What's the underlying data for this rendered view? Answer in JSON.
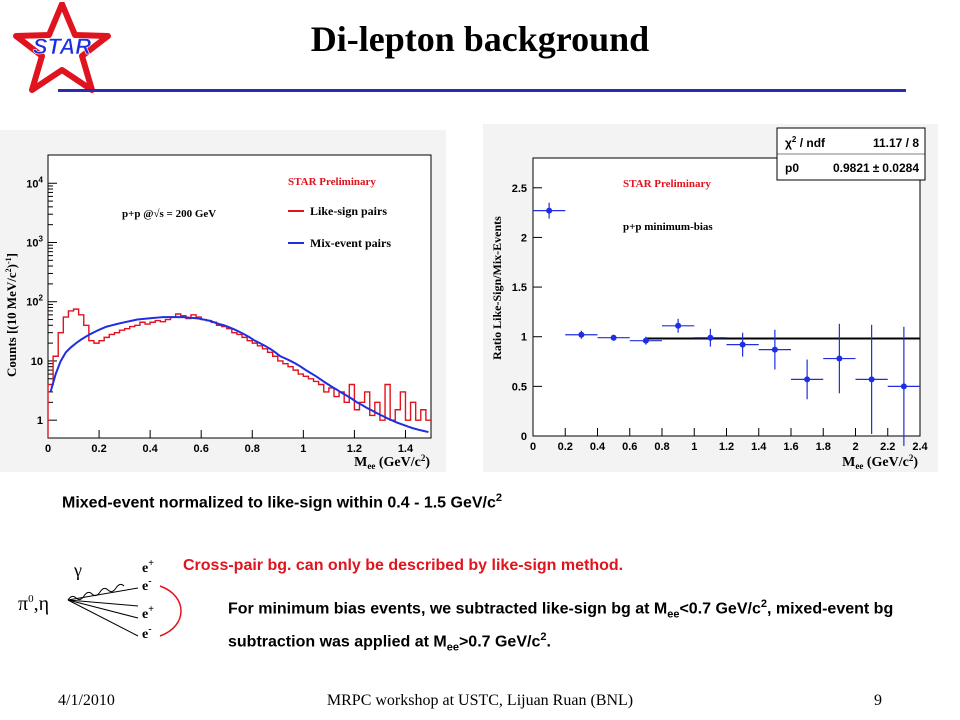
{
  "slide": {
    "title": "Di-lepton background",
    "logo_text": "STAR",
    "footer_date": "4/1/2010",
    "footer_center": "MRPC workshop at USTC, Lijuan Ruan (BNL)",
    "page_number": "9",
    "note_normalized": "Mixed-event normalized to like-sign within 0.4 - 1.5 GeV/c",
    "note_normalized_sup": "2",
    "note_crosspair": "Cross-pair bg. can only be described by like-sign method.",
    "note_minbias_a": "For minimum bias events, we subtracted like-sign bg at M",
    "note_minbias_sub1": "ee",
    "note_minbias_b": "<0.7 GeV/c",
    "note_minbias_sup1": "2",
    "note_minbias_c": ", mixed-event bg subtraction was applied at M",
    "note_minbias_sub2": "ee",
    "note_minbias_d": ">0.7 GeV/c",
    "note_minbias_sup2": "2",
    "note_minbias_e": ".",
    "diagram": {
      "gamma": "γ",
      "parent": "π",
      "parent_sup": "0",
      "parent_tail": ",η",
      "leptons": [
        "e",
        "e",
        "e",
        "e"
      ],
      "lepton_charges": [
        "+",
        "-",
        "+",
        "-"
      ]
    },
    "colors": {
      "title_rule": "#2b2bb0",
      "red": "#e0141e",
      "blue": "#1f2ee0"
    }
  },
  "chart_data": [
    {
      "type": "line",
      "title": "",
      "annotation_preliminary": "STAR Preliminary",
      "annotation_system": "p+p @√s = 200 GeV",
      "xlabel": "M",
      "xlabel_sub": "ee",
      "xlabel_unit": "(GeV/c",
      "xlabel_unit_sup": "2",
      "xlabel_close": ")",
      "ylabel": "Counts [(10 MeV/c",
      "ylabel_sup": "2",
      "ylabel_tail": ")",
      "ylabel_sup2": "-1",
      "ylabel_close": "]",
      "xlim": [
        0,
        1.5
      ],
      "ylim": [
        0.5,
        30000
      ],
      "yscale": "log",
      "xticks": [
        "0",
        "0.2",
        "0.4",
        "0.6",
        "0.8",
        "1",
        "1.2",
        "1.4"
      ],
      "yticks": [
        {
          "base": "1",
          "exp": ""
        },
        {
          "base": "10",
          "exp": ""
        },
        {
          "base": "10",
          "exp": "2"
        },
        {
          "base": "10",
          "exp": "3"
        },
        {
          "base": "10",
          "exp": "4"
        }
      ],
      "legend_position": "top-right",
      "series": [
        {
          "name": "Like-sign pairs",
          "color": "#e0141e",
          "x": [
            0.01,
            0.03,
            0.05,
            0.07,
            0.09,
            0.11,
            0.13,
            0.15,
            0.17,
            0.19,
            0.21,
            0.23,
            0.25,
            0.27,
            0.29,
            0.31,
            0.33,
            0.35,
            0.37,
            0.39,
            0.41,
            0.43,
            0.45,
            0.47,
            0.49,
            0.51,
            0.53,
            0.55,
            0.57,
            0.59,
            0.61,
            0.63,
            0.65,
            0.67,
            0.69,
            0.71,
            0.73,
            0.75,
            0.77,
            0.79,
            0.81,
            0.83,
            0.85,
            0.87,
            0.89,
            0.91,
            0.93,
            0.95,
            0.97,
            0.99,
            1.01,
            1.03,
            1.05,
            1.07,
            1.09,
            1.11,
            1.13,
            1.15,
            1.17,
            1.19,
            1.21,
            1.23,
            1.25,
            1.27,
            1.29,
            1.31,
            1.33,
            1.35,
            1.37,
            1.39,
            1.41,
            1.43,
            1.45,
            1.47,
            1.49
          ],
          "y": [
            4,
            12,
            30,
            55,
            70,
            75,
            60,
            40,
            22,
            20,
            22,
            25,
            28,
            30,
            33,
            35,
            38,
            40,
            45,
            42,
            45,
            48,
            46,
            50,
            55,
            62,
            58,
            52,
            60,
            55,
            50,
            48,
            45,
            40,
            38,
            35,
            30,
            28,
            25,
            22,
            20,
            18,
            16,
            14,
            12,
            10,
            9,
            8,
            7,
            6,
            5.5,
            5,
            4.5,
            4,
            3,
            3.5,
            2.5,
            3,
            2,
            4,
            1.5,
            2,
            3,
            1.2,
            2,
            1,
            4,
            1,
            1.5,
            3,
            1,
            2,
            1,
            1.5,
            1
          ]
        },
        {
          "name": "Mix-event pairs",
          "color": "#1f2ee0",
          "x": [
            0.01,
            0.03,
            0.05,
            0.07,
            0.09,
            0.11,
            0.13,
            0.15,
            0.17,
            0.19,
            0.21,
            0.23,
            0.25,
            0.27,
            0.29,
            0.31,
            0.33,
            0.35,
            0.37,
            0.39,
            0.41,
            0.43,
            0.45,
            0.47,
            0.49,
            0.51,
            0.53,
            0.55,
            0.57,
            0.59,
            0.61,
            0.63,
            0.65,
            0.67,
            0.69,
            0.71,
            0.73,
            0.75,
            0.77,
            0.79,
            0.81,
            0.83,
            0.85,
            0.87,
            0.89,
            0.91,
            0.93,
            0.95,
            0.97,
            0.99,
            1.01,
            1.03,
            1.05,
            1.07,
            1.09,
            1.11,
            1.13,
            1.15,
            1.17,
            1.19,
            1.21,
            1.23,
            1.25,
            1.27,
            1.29,
            1.31,
            1.33,
            1.35,
            1.37,
            1.39,
            1.41,
            1.43,
            1.45,
            1.47,
            1.49
          ],
          "y": [
            3,
            6,
            10,
            14,
            17,
            20,
            23,
            26,
            29,
            32,
            35,
            38,
            40,
            42,
            44,
            46,
            48,
            50,
            51,
            52,
            53,
            54,
            55,
            55,
            55,
            55,
            55,
            54,
            53,
            52,
            50,
            48,
            45,
            42,
            40,
            37,
            34,
            31,
            28,
            25,
            22,
            20,
            18,
            16,
            14,
            12,
            11,
            10,
            9,
            8,
            7,
            6.2,
            5.5,
            4.8,
            4.2,
            3.7,
            3.3,
            2.9,
            2.6,
            2.3,
            2.0,
            1.8,
            1.6,
            1.45,
            1.3,
            1.18,
            1.07,
            0.98,
            0.9,
            0.84,
            0.78,
            0.73,
            0.69,
            0.66,
            0.63
          ]
        }
      ]
    },
    {
      "type": "scatter",
      "title": "",
      "annotation_preliminary": "STAR Preliminary",
      "annotation_system": "p+p minimum-bias",
      "xlabel": "M",
      "xlabel_sub": "ee",
      "xlabel_unit": "(GeV/c",
      "xlabel_unit_sup": "2",
      "xlabel_close": ")",
      "ylabel": "Ratio Like-Sign/Mix-Events",
      "xlim": [
        0,
        2.4
      ],
      "ylim": [
        0,
        2.8
      ],
      "xticks": [
        "0",
        "0.2",
        "0.4",
        "0.6",
        "0.8",
        "1",
        "1.2",
        "1.4",
        "1.6",
        "1.8",
        "2",
        "2.2",
        "2.4"
      ],
      "yticks": [
        "0",
        "0.5",
        "1",
        "1.5",
        "2",
        "2.5"
      ],
      "stats": {
        "row1_label": "χ",
        "row1_label_sup": "2",
        "row1_label_tail": " / ndf",
        "row1_value": "11.17 / 8",
        "row2_label": "p0",
        "row2_value": "0.9821",
        "row2_pm": "±",
        "row2_err": "0.0284"
      },
      "fit": {
        "p0": 0.9821,
        "x_start": 0.7,
        "x_end": 2.4
      },
      "points": [
        {
          "x": 0.1,
          "y": 2.27,
          "xerr": 0.1,
          "yerr": 0.08
        },
        {
          "x": 0.3,
          "y": 1.02,
          "xerr": 0.1,
          "yerr": 0.04
        },
        {
          "x": 0.5,
          "y": 0.99,
          "xerr": 0.1,
          "yerr": 0.03
        },
        {
          "x": 0.7,
          "y": 0.96,
          "xerr": 0.1,
          "yerr": 0.04
        },
        {
          "x": 0.9,
          "y": 1.11,
          "xerr": 0.1,
          "yerr": 0.07
        },
        {
          "x": 1.1,
          "y": 0.99,
          "xerr": 0.1,
          "yerr": 0.09
        },
        {
          "x": 1.3,
          "y": 0.92,
          "xerr": 0.1,
          "yerr": 0.12
        },
        {
          "x": 1.5,
          "y": 0.87,
          "xerr": 0.1,
          "yerr": 0.2
        },
        {
          "x": 1.7,
          "y": 0.57,
          "xerr": 0.1,
          "yerr": 0.2
        },
        {
          "x": 1.9,
          "y": 0.78,
          "xerr": 0.1,
          "yerr": 0.35
        },
        {
          "x": 2.1,
          "y": 0.57,
          "xerr": 0.1,
          "yerr": 0.55
        },
        {
          "x": 2.3,
          "y": 0.5,
          "xerr": 0.1,
          "yerr": 0.6
        }
      ]
    }
  ]
}
